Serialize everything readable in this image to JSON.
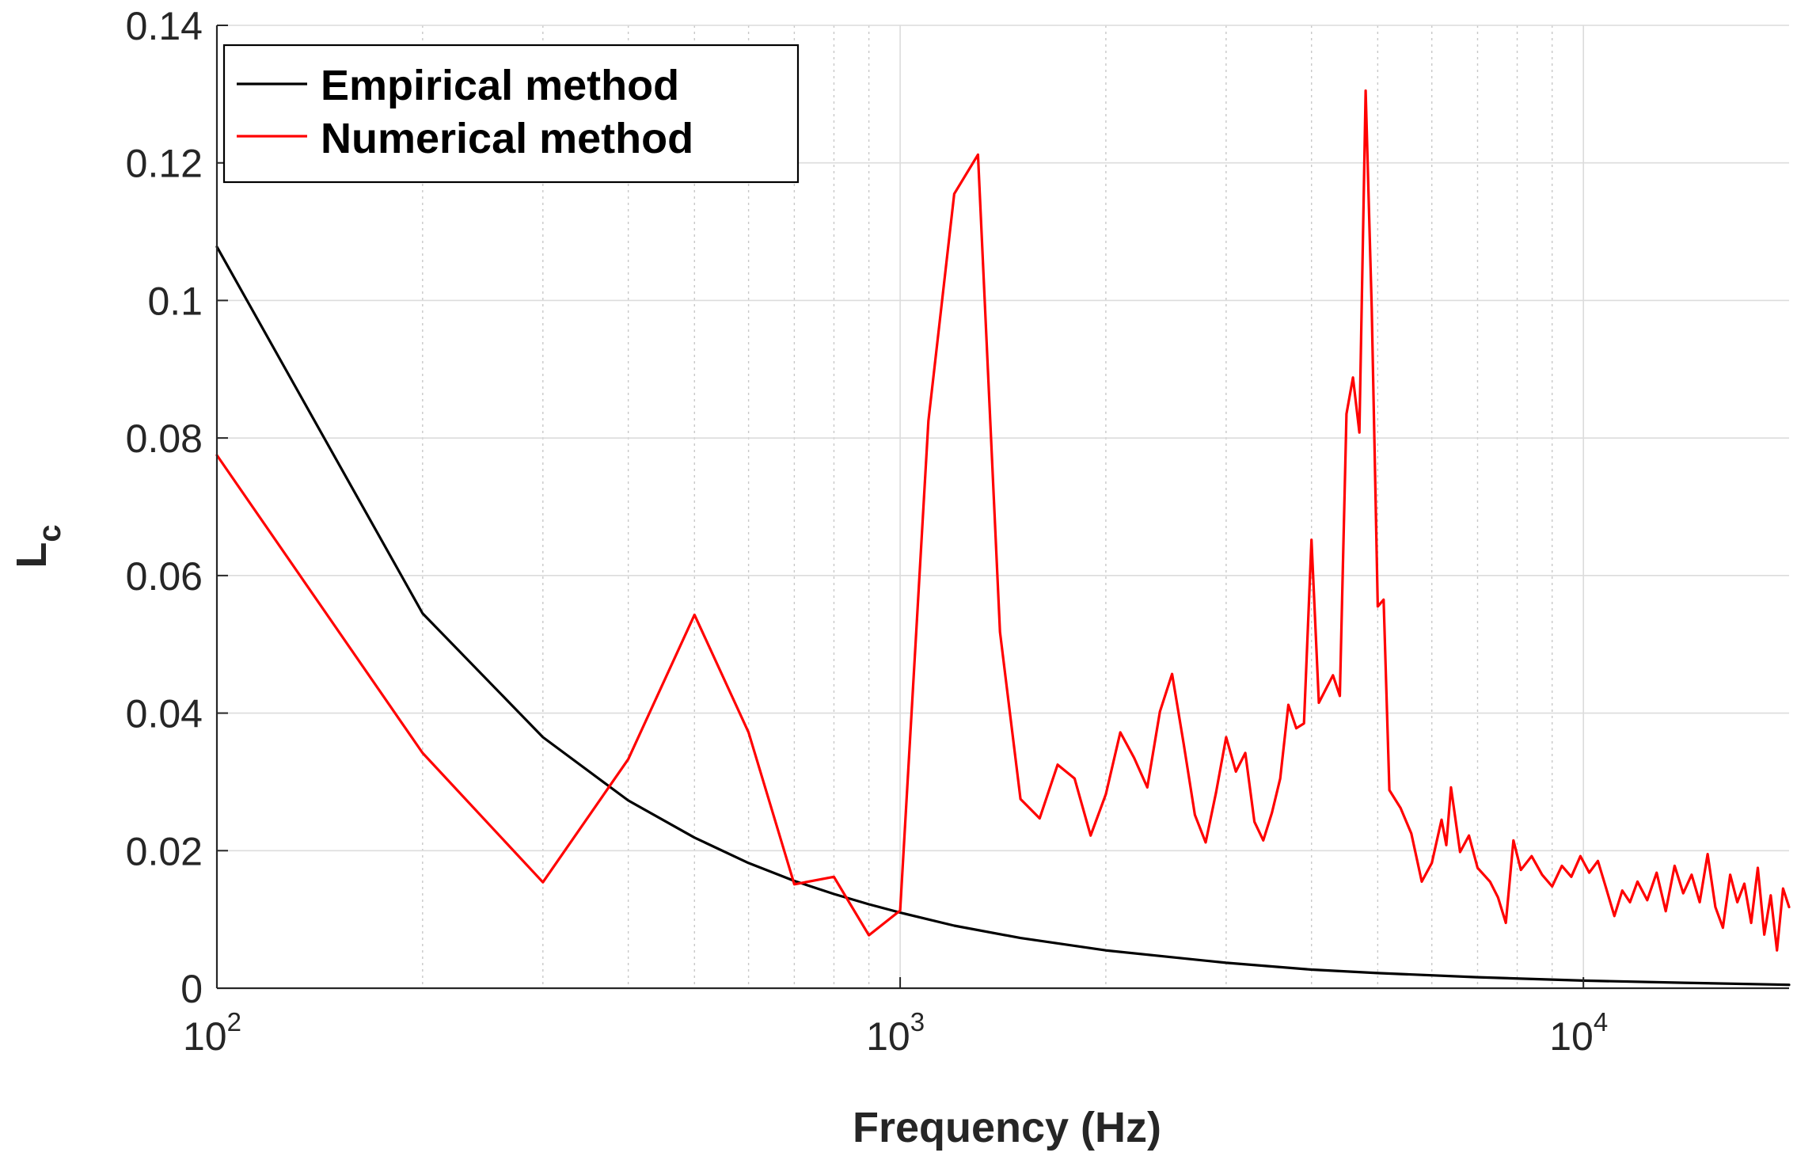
{
  "chart_data": {
    "type": "line",
    "title": "",
    "xlabel": "Frequency (Hz)",
    "ylabel_main": "L",
    "ylabel_sub": "c",
    "xscale": "log",
    "xlim": [
      100,
      20000
    ],
    "ylim": [
      0,
      0.14
    ],
    "grid": true,
    "minor_grid_x": true,
    "legend_position": "top-left",
    "colors": {
      "axes": "#262626",
      "grid": "#dcdcdc",
      "minor_grid": "#c8c8c8"
    },
    "x_ticks": [
      {
        "value": 100,
        "base": "10",
        "exp": "2"
      },
      {
        "value": 1000,
        "base": "10",
        "exp": "3"
      },
      {
        "value": 10000,
        "base": "10",
        "exp": "4"
      }
    ],
    "y_ticks": [
      {
        "value": 0,
        "label": "0"
      },
      {
        "value": 0.02,
        "label": "0.02"
      },
      {
        "value": 0.04,
        "label": "0.04"
      },
      {
        "value": 0.06,
        "label": "0.06"
      },
      {
        "value": 0.08,
        "label": "0.08"
      },
      {
        "value": 0.1,
        "label": "0.1"
      },
      {
        "value": 0.12,
        "label": "0.12"
      },
      {
        "value": 0.14,
        "label": "0.14"
      }
    ],
    "series": [
      {
        "name": "Empirical method",
        "color": "#000000",
        "points": [
          [
            100,
            0.1078
          ],
          [
            200,
            0.0545
          ],
          [
            300,
            0.0365
          ],
          [
            400,
            0.0273
          ],
          [
            500,
            0.0219
          ],
          [
            600,
            0.0182
          ],
          [
            700,
            0.0156
          ],
          [
            800,
            0.0137
          ],
          [
            900,
            0.0122
          ],
          [
            1000,
            0.011
          ],
          [
            1200,
            0.0091
          ],
          [
            1500,
            0.0073
          ],
          [
            2000,
            0.0055
          ],
          [
            3000,
            0.0037
          ],
          [
            4000,
            0.0027
          ],
          [
            5000,
            0.0022
          ],
          [
            7000,
            0.0016
          ],
          [
            10000,
            0.0011
          ],
          [
            14000,
            0.0008
          ],
          [
            20000,
            0.0005
          ]
        ]
      },
      {
        "name": "Numerical method",
        "color": "#ff0000",
        "points": [
          [
            100,
            0.0775
          ],
          [
            200,
            0.0342
          ],
          [
            300,
            0.0154
          ],
          [
            400,
            0.0333
          ],
          [
            500,
            0.0543
          ],
          [
            600,
            0.0372
          ],
          [
            700,
            0.0151
          ],
          [
            800,
            0.0162
          ],
          [
            900,
            0.0077
          ],
          [
            1000,
            0.0113
          ],
          [
            1100,
            0.0825
          ],
          [
            1200,
            0.1155
          ],
          [
            1300,
            0.1212
          ],
          [
            1400,
            0.0518
          ],
          [
            1500,
            0.0275
          ],
          [
            1600,
            0.0247
          ],
          [
            1700,
            0.0325
          ],
          [
            1800,
            0.0305
          ],
          [
            1900,
            0.0222
          ],
          [
            2000,
            0.0282
          ],
          [
            2100,
            0.0372
          ],
          [
            2200,
            0.0335
          ],
          [
            2300,
            0.0292
          ],
          [
            2400,
            0.0402
          ],
          [
            2500,
            0.0457
          ],
          [
            2600,
            0.0355
          ],
          [
            2700,
            0.0252
          ],
          [
            2800,
            0.0212
          ],
          [
            2900,
            0.0285
          ],
          [
            3000,
            0.0365
          ],
          [
            3100,
            0.0315
          ],
          [
            3200,
            0.0342
          ],
          [
            3300,
            0.0242
          ],
          [
            3400,
            0.0215
          ],
          [
            3500,
            0.0255
          ],
          [
            3600,
            0.0305
          ],
          [
            3700,
            0.0412
          ],
          [
            3800,
            0.0378
          ],
          [
            3900,
            0.0385
          ],
          [
            4000,
            0.0652
          ],
          [
            4100,
            0.0415
          ],
          [
            4300,
            0.0455
          ],
          [
            4400,
            0.0425
          ],
          [
            4500,
            0.0835
          ],
          [
            4600,
            0.0888
          ],
          [
            4700,
            0.0808
          ],
          [
            4800,
            0.1305
          ],
          [
            4900,
            0.0988
          ],
          [
            5000,
            0.0555
          ],
          [
            5100,
            0.0565
          ],
          [
            5200,
            0.0288
          ],
          [
            5400,
            0.0262
          ],
          [
            5600,
            0.0225
          ],
          [
            5800,
            0.0155
          ],
          [
            6000,
            0.0182
          ],
          [
            6200,
            0.0245
          ],
          [
            6300,
            0.0208
          ],
          [
            6400,
            0.0292
          ],
          [
            6600,
            0.0198
          ],
          [
            6800,
            0.0222
          ],
          [
            7000,
            0.0175
          ],
          [
            7300,
            0.0155
          ],
          [
            7500,
            0.0132
          ],
          [
            7700,
            0.0095
          ],
          [
            7900,
            0.0215
          ],
          [
            8100,
            0.0172
          ],
          [
            8400,
            0.0192
          ],
          [
            8700,
            0.0165
          ],
          [
            9000,
            0.0148
          ],
          [
            9300,
            0.0178
          ],
          [
            9600,
            0.0162
          ],
          [
            9900,
            0.0192
          ],
          [
            10200,
            0.0168
          ],
          [
            10500,
            0.0185
          ],
          [
            10800,
            0.0145
          ],
          [
            11100,
            0.0105
          ],
          [
            11400,
            0.0142
          ],
          [
            11700,
            0.0125
          ],
          [
            12000,
            0.0155
          ],
          [
            12400,
            0.0128
          ],
          [
            12800,
            0.0168
          ],
          [
            13200,
            0.0112
          ],
          [
            13600,
            0.0178
          ],
          [
            14000,
            0.0138
          ],
          [
            14400,
            0.0165
          ],
          [
            14800,
            0.0125
          ],
          [
            15200,
            0.0195
          ],
          [
            15600,
            0.0118
          ],
          [
            16000,
            0.0088
          ],
          [
            16400,
            0.0165
          ],
          [
            16800,
            0.0125
          ],
          [
            17200,
            0.0152
          ],
          [
            17600,
            0.0095
          ],
          [
            18000,
            0.0175
          ],
          [
            18400,
            0.0078
          ],
          [
            18800,
            0.0135
          ],
          [
            19200,
            0.0055
          ],
          [
            19600,
            0.0145
          ],
          [
            20000,
            0.0118
          ]
        ]
      }
    ]
  }
}
